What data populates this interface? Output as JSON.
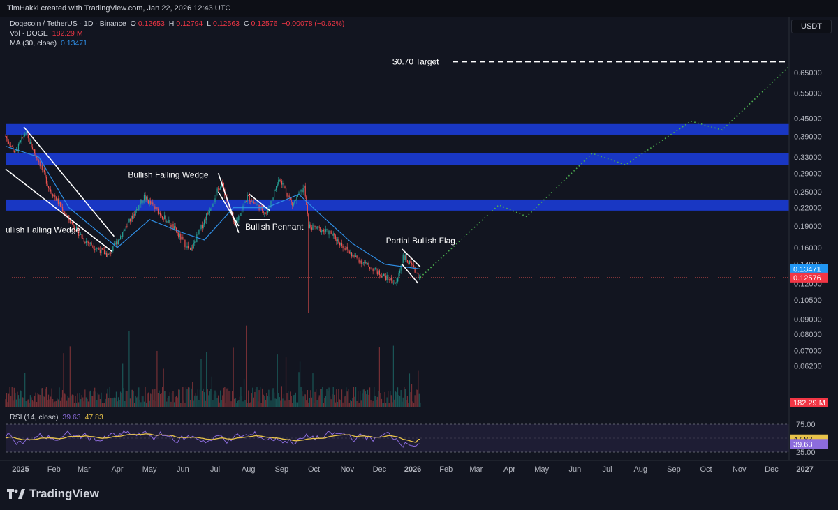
{
  "header": {
    "credit": "TimHakki created with TradingView.com, Jan 22, 2026 12:43 UTC"
  },
  "legend": {
    "symbol": "Dogecoin / TetherUS · 1D · Binance",
    "o_label": "O",
    "o": "0.12653",
    "h_label": "H",
    "h": "0.12794",
    "l_label": "L",
    "l": "0.12563",
    "c_label": "C",
    "c": "0.12576",
    "change": "−0.00078 (−0.62%)",
    "vol_label": "Vol · DOGE",
    "vol": "182.29 M",
    "ma_label": "MA (30, close)",
    "ma": "0.13471",
    "rsi_label": "RSI (14, close)",
    "rsi": "39.63",
    "rsi_ma": "47.83"
  },
  "currency_button": "USDT",
  "brand": {
    "name": "TradingView",
    "icon": "tradingview-logo-icon"
  },
  "colors": {
    "background": "#121520",
    "up": "#26a69a",
    "down": "#ef5350",
    "ma": "#2f8fe6",
    "zone": "#1a3bd1",
    "target": "#4caf50",
    "rsi": "#8c6cdc",
    "rsi_ma": "#e8c34a"
  },
  "chart_data": {
    "type": "candlestick",
    "symbol": "DOGEUSDT",
    "y_scale": "log",
    "y_ticks": [
      "0.65000",
      "0.55000",
      "0.45000",
      "0.39000",
      "0.33000",
      "0.29000",
      "0.25000",
      "0.22000",
      "0.19000",
      "0.16000",
      "0.14000",
      "0.12000",
      "0.10500",
      "0.09000",
      "0.08000",
      "0.07000",
      "0.06200"
    ],
    "x_ticks": [
      "2025",
      "Feb",
      "Mar",
      "Apr",
      "May",
      "Jun",
      "Jul",
      "Aug",
      "Sep",
      "Oct",
      "Nov",
      "Dec",
      "2026",
      "Feb",
      "Mar",
      "Apr",
      "May",
      "Jun",
      "Jul",
      "Aug",
      "Sep",
      "Oct",
      "Nov",
      "Dec",
      "2027"
    ],
    "price_path": [
      {
        "date": "2025-01-01",
        "price": 0.39
      },
      {
        "date": "2025-01-10",
        "price": 0.34
      },
      {
        "date": "2025-01-19",
        "price": 0.4
      },
      {
        "date": "2025-02-01",
        "price": 0.32
      },
      {
        "date": "2025-02-10",
        "price": 0.26
      },
      {
        "date": "2025-03-01",
        "price": 0.2
      },
      {
        "date": "2025-03-15",
        "price": 0.17
      },
      {
        "date": "2025-04-07",
        "price": 0.15
      },
      {
        "date": "2025-05-10",
        "price": 0.24
      },
      {
        "date": "2025-06-05",
        "price": 0.19
      },
      {
        "date": "2025-06-22",
        "price": 0.155
      },
      {
        "date": "2025-07-21",
        "price": 0.27
      },
      {
        "date": "2025-08-02",
        "price": 0.19
      },
      {
        "date": "2025-08-14",
        "price": 0.24
      },
      {
        "date": "2025-09-01",
        "price": 0.21
      },
      {
        "date": "2025-09-13",
        "price": 0.28
      },
      {
        "date": "2025-09-25",
        "price": 0.225
      },
      {
        "date": "2025-10-06",
        "price": 0.26
      },
      {
        "date": "2025-10-10",
        "price": 0.19
      },
      {
        "date": "2025-10-30",
        "price": 0.18
      },
      {
        "date": "2025-11-20",
        "price": 0.15
      },
      {
        "date": "2025-12-15",
        "price": 0.13
      },
      {
        "date": "2025-12-31",
        "price": 0.12
      },
      {
        "date": "2026-01-06",
        "price": 0.15
      },
      {
        "date": "2026-01-22",
        "price": 0.12576
      }
    ],
    "ma_path": [
      {
        "date": "2025-01-01",
        "price": 0.36
      },
      {
        "date": "2025-02-01",
        "price": 0.33
      },
      {
        "date": "2025-03-01",
        "price": 0.22
      },
      {
        "date": "2025-04-15",
        "price": 0.16
      },
      {
        "date": "2025-05-15",
        "price": 0.2
      },
      {
        "date": "2025-06-15",
        "price": 0.18
      },
      {
        "date": "2025-07-05",
        "price": 0.17
      },
      {
        "date": "2025-08-01",
        "price": 0.22
      },
      {
        "date": "2025-09-01",
        "price": 0.22
      },
      {
        "date": "2025-10-01",
        "price": 0.245
      },
      {
        "date": "2025-10-20",
        "price": 0.21
      },
      {
        "date": "2025-11-20",
        "price": 0.165
      },
      {
        "date": "2025-12-20",
        "price": 0.14
      },
      {
        "date": "2026-01-22",
        "price": 0.13471
      }
    ],
    "last_price": 0.12576,
    "ma_value": 0.13471,
    "volume_last": "182.29 M",
    "resistance_zones": [
      {
        "low": 0.395,
        "high": 0.43
      },
      {
        "low": 0.31,
        "high": 0.34
      },
      {
        "low": 0.215,
        "high": 0.235
      }
    ],
    "projection": [
      {
        "date": "2026-01-22",
        "price": 0.126
      },
      {
        "date": "2026-04-05",
        "price": 0.225
      },
      {
        "date": "2026-05-01",
        "price": 0.205
      },
      {
        "date": "2026-07-01",
        "price": 0.34
      },
      {
        "date": "2026-08-01",
        "price": 0.31
      },
      {
        "date": "2026-10-01",
        "price": 0.44
      },
      {
        "date": "2026-10-30",
        "price": 0.41
      },
      {
        "date": "2026-12-31",
        "price": 0.68
      }
    ],
    "target": {
      "label": "$0.70 Target",
      "price": 0.7
    },
    "annotations": [
      {
        "text": "ullish Falling Wedge",
        "date": "2025-01-01",
        "price": 0.18
      },
      {
        "text": "Bullish Falling Wedge",
        "date": "2025-04-25",
        "price": 0.28
      },
      {
        "text": "Bullish Pennant",
        "date": "2025-08-12",
        "price": 0.185
      },
      {
        "text": "Partial Bullish Flag",
        "date": "2025-12-21",
        "price": 0.165
      }
    ],
    "rsi": {
      "value": 39.63,
      "ma": 47.83,
      "levels": [
        75,
        25
      ],
      "tick_labels": [
        "75.00",
        "25.00"
      ]
    },
    "legend_placement": "top-left"
  }
}
